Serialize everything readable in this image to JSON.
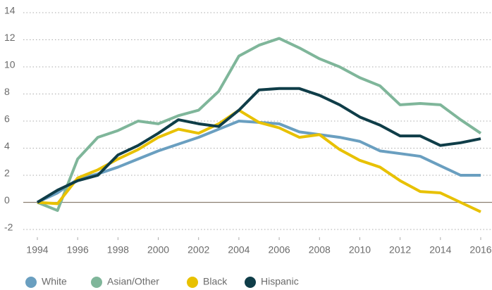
{
  "chart_data": {
    "type": "line",
    "x": [
      1994,
      1995,
      1996,
      1997,
      1998,
      1999,
      2000,
      2001,
      2002,
      2003,
      2004,
      2005,
      2006,
      2007,
      2008,
      2009,
      2010,
      2011,
      2012,
      2013,
      2014,
      2015,
      2016
    ],
    "series": [
      {
        "name": "White",
        "color": "#6a9fc0",
        "values": [
          0,
          0.7,
          1.7,
          2.1,
          2.6,
          3.2,
          3.8,
          4.3,
          4.8,
          5.4,
          6.0,
          5.9,
          5.8,
          5.2,
          5.0,
          4.8,
          4.5,
          3.8,
          3.6,
          3.4,
          2.7,
          2.0,
          2.0
        ]
      },
      {
        "name": "Asian/Other",
        "color": "#7fb69a",
        "values": [
          0,
          -0.6,
          3.2,
          4.8,
          5.3,
          6.0,
          5.8,
          6.4,
          6.8,
          8.2,
          10.8,
          11.6,
          12.1,
          11.4,
          10.6,
          10.0,
          9.2,
          8.6,
          7.2,
          7.3,
          7.2,
          6.1,
          5.1
        ]
      },
      {
        "name": "Black",
        "color": "#e8c100",
        "values": [
          0,
          -0.1,
          1.8,
          2.4,
          3.2,
          3.9,
          4.8,
          5.4,
          5.1,
          5.8,
          6.8,
          5.9,
          5.5,
          4.8,
          5.0,
          3.9,
          3.1,
          2.6,
          1.6,
          0.8,
          0.7,
          0.0,
          -0.7
        ]
      },
      {
        "name": "Hispanic",
        "color": "#0f3d48",
        "values": [
          0,
          0.9,
          1.6,
          2.0,
          3.5,
          4.2,
          5.1,
          6.1,
          5.8,
          5.6,
          6.8,
          8.3,
          8.4,
          8.4,
          7.9,
          7.2,
          6.3,
          5.7,
          4.9,
          4.9,
          4.2,
          4.4,
          4.7
        ]
      }
    ],
    "xlim": [
      1994,
      2016
    ],
    "xticks": [
      1994,
      1996,
      1998,
      2000,
      2002,
      2004,
      2006,
      2008,
      2010,
      2012,
      2014,
      2016
    ],
    "ylim": [
      -2,
      14
    ],
    "yticks": [
      -2,
      0,
      2,
      4,
      6,
      8,
      10,
      12,
      14
    ],
    "grid": true,
    "legend": "bottom"
  }
}
